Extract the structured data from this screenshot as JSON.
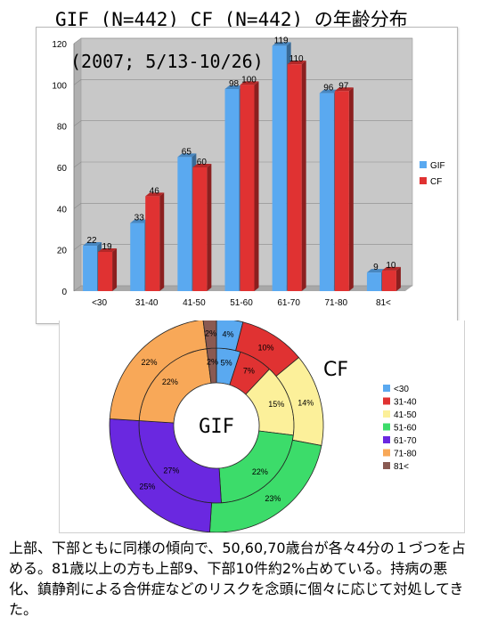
{
  "title": "GIF (N=442) CF (N=442) の年齢分布",
  "comment": "上部、下部ともに同様の傾向で、50,60,70歳台が各々4分の１づつを占める。81歳以上の方も上部9、下部10件約2%占めている。持病の悪化、鎮静剤による合併症などのリスクを念頭に個々に応じて対処してきた。",
  "chart_data": [
    {
      "type": "bar",
      "title": "",
      "subtitle": "(2007; 5/13-10/26)",
      "categories": [
        "<30",
        "31-40",
        "41-50",
        "51-60",
        "61-70",
        "71-80",
        "81<"
      ],
      "series": [
        {
          "name": "GIF",
          "values": [
            22,
            33,
            65,
            98,
            119,
            96,
            9
          ],
          "color": "#5aa9f0"
        },
        {
          "name": "CF",
          "values": [
            19,
            46,
            60,
            100,
            110,
            97,
            10
          ],
          "color": "#e03232"
        }
      ],
      "ylim": [
        0,
        120
      ],
      "yticks": [
        0,
        20,
        40,
        60,
        80,
        100,
        120
      ],
      "grid": true,
      "legend_position": "right",
      "xlabel": "",
      "ylabel": ""
    },
    {
      "type": "pie",
      "variant": "double-donut",
      "inner_label": "GIF",
      "outer_label": "CF",
      "categories": [
        "<30",
        "31-40",
        "41-50",
        "51-60",
        "61-70",
        "71-80",
        "81<"
      ],
      "colors": [
        "#5aa9f0",
        "#e03232",
        "#fcf09a",
        "#3cdc6a",
        "#6a28e0",
        "#f8a858",
        "#8a5a52"
      ],
      "rings": [
        {
          "name": "GIF",
          "values": [
            5,
            7,
            15,
            22,
            27,
            22,
            2
          ],
          "labels": [
            "5%",
            "7%",
            "15%",
            "22%",
            "27%",
            "22%",
            "2%"
          ]
        },
        {
          "name": "CF",
          "values": [
            4,
            10,
            14,
            23,
            25,
            22,
            2
          ],
          "labels": [
            "4%",
            "10%",
            "14%",
            "23%",
            "25%",
            "22%",
            "2%"
          ]
        }
      ],
      "legend_position": "right"
    }
  ]
}
